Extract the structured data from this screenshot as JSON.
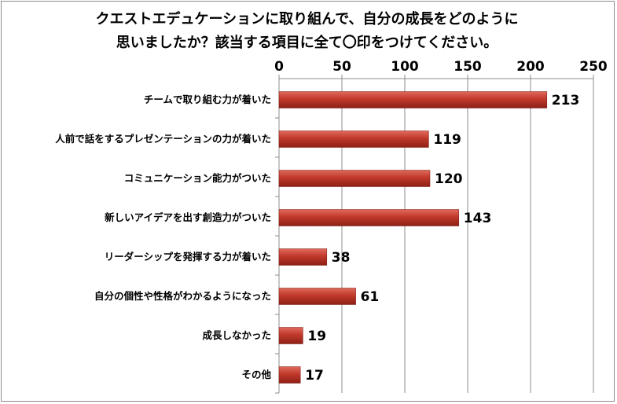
{
  "chart_data": {
    "type": "bar",
    "orientation": "horizontal",
    "title_lines": [
      "クエストエデュケーションに取り組んで、自分の成長をどのように",
      "思いましたか？該当する項目に全て〇印をつけてください。"
    ],
    "categories": [
      "チームで取り組む力が着いた",
      "人前で話をするプレゼンテーションの力が着いた",
      "コミュニケーション能力がついた",
      "新しいアイデアを出す創造力がついた",
      "リーダーシップを発揮する力が着いた",
      "自分の個性や性格がわかるようになった",
      "成長しなかった",
      "その他"
    ],
    "values": [
      213,
      119,
      120,
      143,
      38,
      61,
      19,
      17
    ],
    "xlim": [
      0,
      250
    ],
    "x_ticks": [
      "0",
      "50",
      "100",
      "150",
      "200",
      "250"
    ],
    "x_axis_position": "top",
    "grid": true,
    "legend": "none",
    "bar_color": "#c0392b"
  }
}
